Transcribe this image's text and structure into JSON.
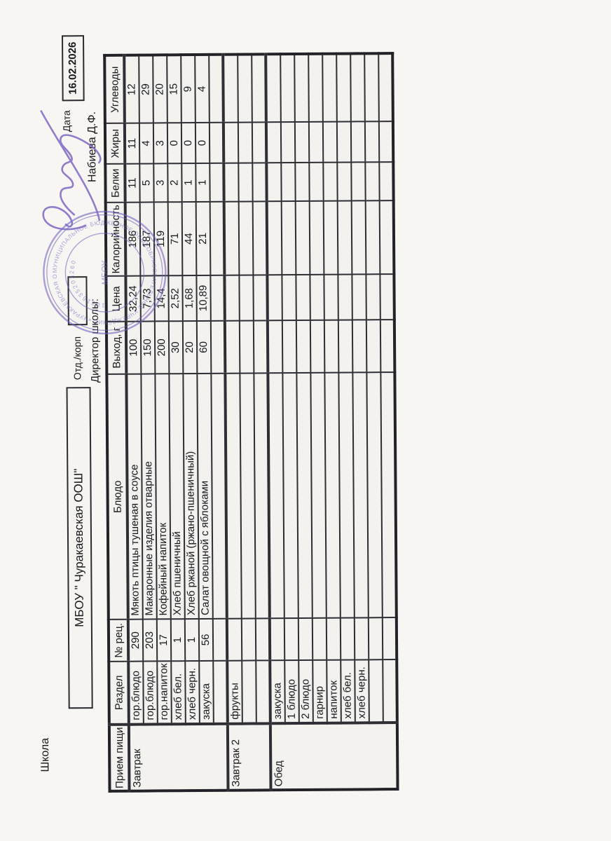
{
  "page": {
    "school_label": "Школа",
    "school_name": "МБОУ \" Чуракаевская ООШ\"",
    "dept_label": "Отд./корп",
    "date_label": "Дата",
    "date_value": "16.02.2026",
    "director_label": "Директор школы:",
    "director_name": "Набиева Д.Ф."
  },
  "stamp": {
    "ring_text": "МУНИЦИПАЛЬНОЕ БЮДЖЕТНОЕ ОБЩЕОБРАЗОВАТЕЛЬНОЕ УЧРЕЖДЕНИЕ «ЧУРАКАЕВСКАЯ ООШ» МУНИЦИПАЛЬНОГО РАЙОНА",
    "number": "1031635203260",
    "center_text": "МБОУ"
  },
  "table": {
    "headers": [
      "Прием пищи",
      "Раздел",
      "№ рец.",
      "Блюдо",
      "Выход, г",
      "Цена",
      "Калорийность",
      "Белки",
      "Жиры",
      "Углеводы"
    ],
    "sections": [
      {
        "meal": "Завтрак",
        "rows": [
          [
            "гор.блюдо",
            "290",
            "Мякоть птицы тушеная в соусе",
            "100",
            "32,24",
            "186",
            "11",
            "11",
            "12"
          ],
          [
            "гор.блюдо",
            "203",
            "Макаронные изделия отварные",
            "150",
            "7,73",
            "187",
            "5",
            "4",
            "29"
          ],
          [
            "гор.напиток",
            "17",
            "Кофейный напиток",
            "200",
            "14,4",
            "119",
            "3",
            "3",
            "20"
          ],
          [
            "хлеб бел.",
            "1",
            "Хлеб пшеничный",
            "30",
            "2,52",
            "71",
            "2",
            "0",
            "15"
          ],
          [
            "хлеб черн.",
            "1",
            "Хлеб ржаной (ржано-пшеничный)",
            "20",
            "1,68",
            "44",
            "1",
            "0",
            "9"
          ],
          [
            "закуска",
            "56",
            "Салат овощной с яблоками",
            "60",
            "10,89",
            "21",
            "1",
            "0",
            "4"
          ],
          [
            "",
            "",
            "",
            "",
            "",
            "",
            "",
            "",
            ""
          ]
        ]
      },
      {
        "meal": "Завтрак 2",
        "rows": [
          [
            "фрукты",
            "",
            "",
            "",
            "",
            "",
            "",
            "",
            ""
          ],
          [
            "",
            "",
            "",
            "",
            "",
            "",
            "",
            "",
            ""
          ],
          [
            "",
            "",
            "",
            "",
            "",
            "",
            "",
            "",
            ""
          ]
        ]
      },
      {
        "meal": "Обед",
        "rows": [
          [
            "закуска",
            "",
            "",
            "",
            "",
            "",
            "",
            "",
            ""
          ],
          [
            "1 блюдо",
            "",
            "",
            "",
            "",
            "",
            "",
            "",
            ""
          ],
          [
            "2 блюдо",
            "",
            "",
            "",
            "",
            "",
            "",
            "",
            ""
          ],
          [
            "гарнир",
            "",
            "",
            "",
            "",
            "",
            "",
            "",
            ""
          ],
          [
            "напиток",
            "",
            "",
            "",
            "",
            "",
            "",
            "",
            ""
          ],
          [
            "хлеб бел.",
            "",
            "",
            "",
            "",
            "",
            "",
            "",
            ""
          ],
          [
            "хлеб черн.",
            "",
            "",
            "",
            "",
            "",
            "",
            "",
            ""
          ],
          [
            "",
            "",
            "",
            "",
            "",
            "",
            "",
            "",
            ""
          ],
          [
            "",
            "",
            "",
            "",
            "",
            "",
            "",
            "",
            ""
          ]
        ]
      }
    ]
  }
}
